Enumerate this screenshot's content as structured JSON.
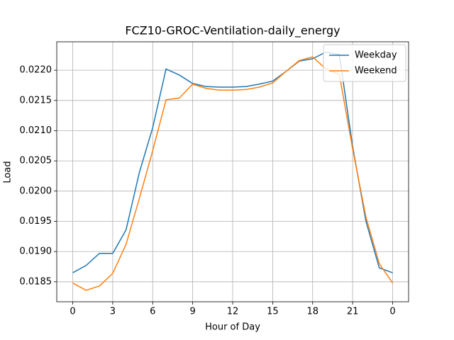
{
  "chart_data": {
    "type": "line",
    "title": "FCZ10-GROC-Ventilation-daily_energy",
    "xlabel": "Hour of Day",
    "ylabel": "Load",
    "x": [
      0,
      1,
      2,
      3,
      4,
      5,
      6,
      7,
      8,
      9,
      10,
      11,
      12,
      13,
      14,
      15,
      16,
      17,
      18,
      19,
      20,
      21,
      22,
      23,
      24
    ],
    "series": [
      {
        "name": "Weekday",
        "color": "#1f77b4",
        "values": [
          0.01865,
          0.01877,
          0.01897,
          0.01897,
          0.01936,
          0.02031,
          0.02105,
          0.02202,
          0.02192,
          0.02178,
          0.02173,
          0.02172,
          0.02172,
          0.02173,
          0.02177,
          0.02182,
          0.02198,
          0.02215,
          0.02219,
          0.0223,
          0.02226,
          0.02074,
          0.0195,
          0.01873,
          0.01865
        ]
      },
      {
        "name": "Weekend",
        "color": "#ff7f0e",
        "values": [
          0.01848,
          0.01836,
          0.01843,
          0.01864,
          0.01912,
          0.01988,
          0.02067,
          0.02151,
          0.02154,
          0.02177,
          0.0217,
          0.02167,
          0.02167,
          0.02168,
          0.02172,
          0.02179,
          0.02198,
          0.02216,
          0.02222,
          0.02202,
          0.02193,
          0.0207,
          0.01957,
          0.0188,
          0.01848
        ]
      }
    ],
    "xlim": [
      -1.2,
      25.2
    ],
    "xticks": [
      0,
      3,
      6,
      9,
      12,
      15,
      18,
      21,
      {
        "value": 24,
        "label": "0"
      }
    ],
    "ylim": [
      0.01817,
      0.02247
    ],
    "yticks": [
      0.0185,
      {
        "value": 0.019,
        "label": "0.0190"
      },
      0.0195,
      {
        "value": 0.02,
        "label": "0.0200"
      },
      0.0205,
      {
        "value": 0.021,
        "label": "0.0210"
      },
      0.0215,
      {
        "value": 0.022,
        "label": "0.0220"
      }
    ],
    "grid": true,
    "legend": "upper right"
  }
}
